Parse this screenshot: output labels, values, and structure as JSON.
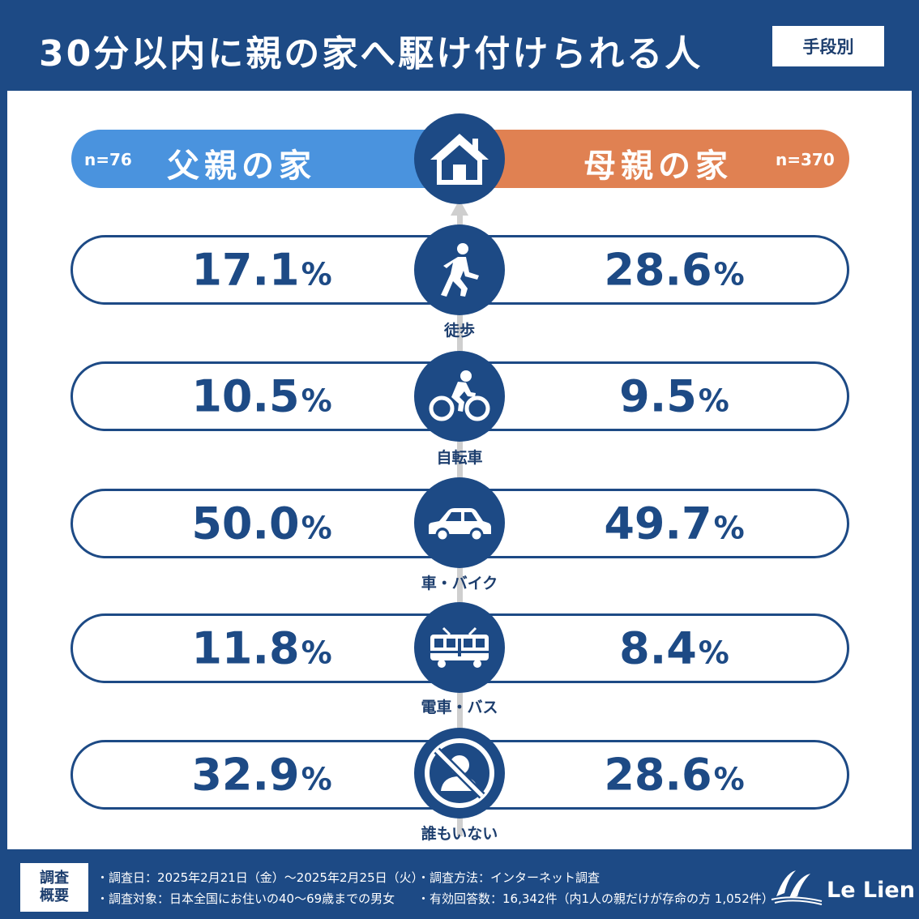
{
  "header": {
    "title": "30分以内に親の家へ駆け付けられる人",
    "badge": "手段別"
  },
  "columns": {
    "left": {
      "label": "父親の家",
      "n": "n=76",
      "color": "#4a93de"
    },
    "right": {
      "label": "母親の家",
      "n": "n=370",
      "color": "#e08152"
    }
  },
  "chart_data": {
    "type": "table",
    "title": "30分以内に親の家へ駆け付けられる人",
    "subtitle": "手段別",
    "columns": [
      "父親の家",
      "母親の家"
    ],
    "categories": [
      "徒歩",
      "自転車",
      "車・バイク",
      "電車・バス",
      "誰もいない"
    ],
    "unit": "%",
    "series": [
      {
        "name": "父親の家",
        "values": [
          17.1,
          10.5,
          50.0,
          11.8,
          32.9
        ]
      },
      {
        "name": "母親の家",
        "values": [
          28.6,
          9.5,
          49.7,
          8.4,
          28.6
        ]
      }
    ]
  },
  "rows": [
    {
      "category": "徒歩",
      "icon": "walking-person-icon",
      "left": "17.1",
      "right": "28.6",
      "pct": "%"
    },
    {
      "category": "自転車",
      "icon": "bicycle-rider-icon",
      "left": "10.5",
      "right": "9.5",
      "pct": "%"
    },
    {
      "category": "車・バイク",
      "icon": "car-icon",
      "left": "50.0",
      "right": "49.7",
      "pct": "%"
    },
    {
      "category": "電車・バス",
      "icon": "train-icon",
      "left": "11.8",
      "right": "8.4",
      "pct": "%"
    },
    {
      "category": "誰もいない",
      "icon": "no-person-icon",
      "left": "32.9",
      "right": "28.6",
      "pct": "%"
    }
  ],
  "footer": {
    "box_line1": "調査",
    "box_line2": "概要",
    "date": "・調査日：2025年2月21日（金）～2025年2月25日（火）",
    "method": "・調査方法：インターネット調査",
    "target": "・調査対象：日本全国にお住いの40～69歳までの男女",
    "responses": "・有効回答数：16,342件（内1人の親だけが存命の方 1,052件）",
    "brand": "Le Lien"
  },
  "colors": {
    "navy": "#1d4a85",
    "blue": "#4a93de",
    "orange": "#e08152",
    "white": "#ffffff"
  }
}
